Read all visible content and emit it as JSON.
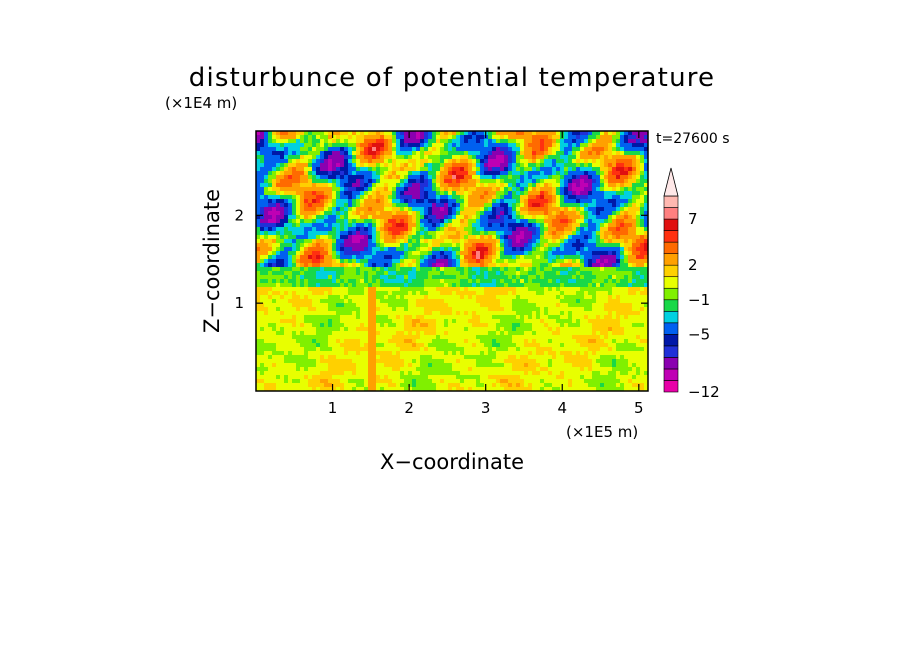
{
  "chart_data": {
    "type": "heatmap",
    "title": "disturbunce of potential temperature",
    "time_label": "t=27600 s",
    "xlabel": "X−coordinate",
    "ylabel": "Z−coordinate",
    "x_scale_label": "(×1E5 m)",
    "y_scale_label": "(×1E4 m)",
    "xlim": [
      0,
      5.12
    ],
    "ylim": [
      0,
      2.96
    ],
    "x_ticks": [
      {
        "value": 1,
        "label": "1"
      },
      {
        "value": 2,
        "label": "2"
      },
      {
        "value": 3,
        "label": "3"
      },
      {
        "value": 4,
        "label": "4"
      },
      {
        "value": 5,
        "label": "5"
      }
    ],
    "y_ticks": [
      {
        "value": 1,
        "label": "1"
      },
      {
        "value": 2,
        "label": "2"
      }
    ],
    "colorbar": {
      "levels_bottom_to_top": [
        {
          "color": "#e800a8"
        },
        {
          "color": "#bf00b4"
        },
        {
          "color": "#8a00b0"
        },
        {
          "color": "#2030d8"
        },
        {
          "color": "#0018a8"
        },
        {
          "color": "#0060f0"
        },
        {
          "color": "#00d0e0"
        },
        {
          "color": "#18d848"
        },
        {
          "color": "#80f000"
        },
        {
          "color": "#e8ff00"
        },
        {
          "color": "#ffd000"
        },
        {
          "color": "#ffa000"
        },
        {
          "color": "#ff6a00"
        },
        {
          "color": "#ff3010"
        },
        {
          "color": "#e01010"
        },
        {
          "color": "#ff8080"
        },
        {
          "color": "#ffb8b0"
        }
      ],
      "tick_labels": [
        {
          "text": "−12",
          "at_boundary": 0
        },
        {
          "text": "−5",
          "at_boundary": 5
        },
        {
          "text": "−1",
          "at_boundary": 8
        },
        {
          "text": "2",
          "at_boundary": 11
        },
        {
          "text": "7",
          "at_boundary": 15
        }
      ],
      "extend_top": true
    },
    "field_description_rows_top_to_bottom": [
      "upper layer (z 1.4–2.96): alternating blue/cyan and red/orange wave patches",
      "transition (z 1.2–1.4): green/cyan band",
      "lower layer (z 0–1.2): yellow with orange streaks"
    ]
  }
}
